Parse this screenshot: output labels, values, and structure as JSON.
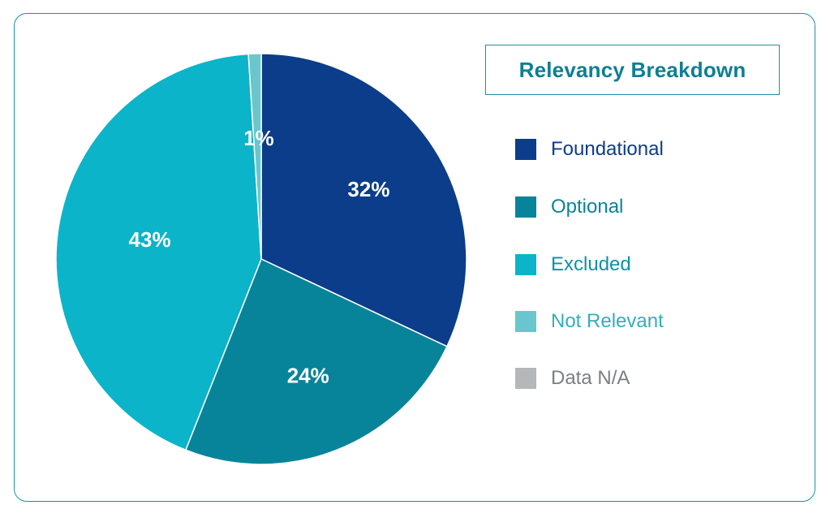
{
  "title": "Relevancy Breakdown",
  "colors": {
    "frame": "#1f8fa0",
    "title_text": "#0e7f93"
  },
  "chart_data": {
    "type": "pie",
    "title": "Relevancy Breakdown",
    "legend_position": "right",
    "slices": [
      {
        "name": "Foundational",
        "value": 32,
        "label": "32%",
        "color": "#0c3d8a",
        "legend_text_color": "#0c3d8a"
      },
      {
        "name": "Optional",
        "value": 24,
        "label": "24%",
        "color": "#08849a",
        "legend_text_color": "#08849a"
      },
      {
        "name": "Excluded",
        "value": 43,
        "label": "43%",
        "color": "#0bb4c9",
        "legend_text_color": "#0a93a8"
      },
      {
        "name": "Not Relevant",
        "value": 1,
        "label": "1%",
        "color": "#6ac6cd",
        "legend_text_color": "#35aeb9"
      },
      {
        "name": "Data N/A",
        "value": 0,
        "label": "",
        "color": "#b5b7b9",
        "legend_text_color": "#7c7f82"
      }
    ]
  }
}
